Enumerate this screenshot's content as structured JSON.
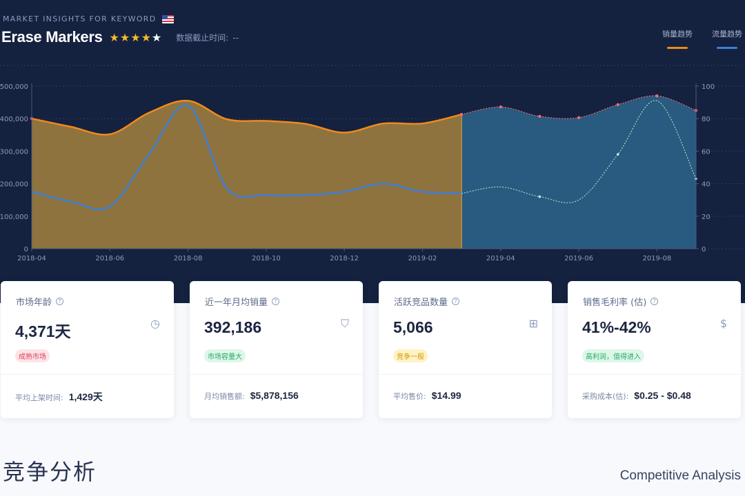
{
  "header": {
    "kicker": "MARKET INSIGHTS FOR KEYWORD",
    "flag_icon": "us-flag-icon",
    "keyword": "Erase Markers",
    "rating": 4.5,
    "as_of_label": "数据截止时间:",
    "as_of_value": "--"
  },
  "legend": {
    "sales_label": "销量趋势",
    "sales_color": "#f08a1c",
    "traffic_label": "流量趋势",
    "traffic_color": "#3d7fd8"
  },
  "chart_data": {
    "type": "area",
    "x": [
      "2018-04",
      "2018-05",
      "2018-06",
      "2018-07",
      "2018-08",
      "2018-09",
      "2018-10",
      "2018-11",
      "2018-12",
      "2019-01",
      "2019-02",
      "2019-03",
      "2019-04",
      "2019-05",
      "2019-06",
      "2019-07",
      "2019-08",
      "2019-09"
    ],
    "x_tick_labels": [
      "2018-04",
      "2018-06",
      "2018-08",
      "2018-10",
      "2018-12",
      "2019-02",
      "2019-04",
      "2019-06",
      "2019-08"
    ],
    "actual_through": "2019-03",
    "series": [
      {
        "name": "销量趋势",
        "axis": "left",
        "values": [
          400000,
          375000,
          352000,
          418000,
          455000,
          398000,
          393000,
          384000,
          357000,
          385000,
          385000,
          413000,
          436000,
          407000,
          403000,
          443000,
          470000,
          425000
        ]
      },
      {
        "name": "流量趋势",
        "axis": "right",
        "values": [
          35,
          29,
          26,
          58,
          88,
          37,
          33,
          33,
          35,
          40,
          35,
          34,
          38,
          32,
          30,
          58,
          91,
          43
        ]
      }
    ],
    "y_left": {
      "ylim": [
        0,
        500000
      ],
      "ticks": [
        "0",
        "100,000",
        "200,000",
        "300,000",
        "400,000",
        "500,000"
      ]
    },
    "y_right": {
      "ylim": [
        0,
        100
      ],
      "ticks": [
        "0",
        "20",
        "40",
        "60",
        "80",
        "100"
      ]
    },
    "grid": true,
    "colors": {
      "actual_fill": "#8f733e",
      "forecast_fill": "#295a80",
      "sales_line": "#f08a1c",
      "traffic_line": "#3d7fd8",
      "forecast_points": "#f06b7a"
    }
  },
  "cards": [
    {
      "label": "市场年龄",
      "icon": "clock-icon",
      "value": "4,371天",
      "tag": "成熟市场",
      "tag_style": "red",
      "foot_label": "平均上架时间:",
      "foot_value": "1,429天"
    },
    {
      "label": "近一年月均销量",
      "icon": "cart-icon",
      "value": "392,186",
      "tag": "市场容量大",
      "tag_style": "green",
      "foot_label": "月均销售额:",
      "foot_value": "$5,878,156"
    },
    {
      "label": "活跃竞品数量",
      "icon": "grid-icon",
      "value": "5,066",
      "tag": "竞争一般",
      "tag_style": "yellow",
      "foot_label": "平均售价:",
      "foot_value": "$14.99"
    },
    {
      "label": "销售毛利率 (估)",
      "icon": "dollar-icon",
      "value": "41%-42%",
      "tag": "高利润，值得进入",
      "tag_style": "green",
      "foot_label": "采购成本(估):",
      "foot_value": "$0.25 - $0.48"
    }
  ],
  "section": {
    "title": "竞争分析",
    "subtitle": "Competitive Analysis"
  }
}
